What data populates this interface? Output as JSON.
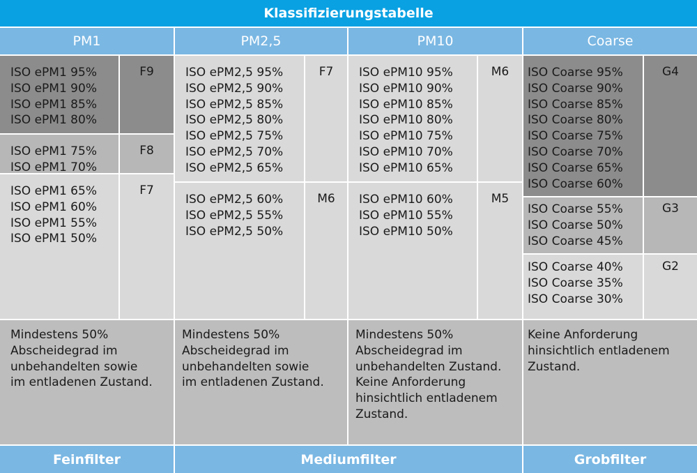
{
  "title": "Klassifizierungstabelle",
  "columns": [
    {
      "label": "PM1"
    },
    {
      "label": "PM2,5"
    },
    {
      "label": "PM10"
    },
    {
      "label": "Coarse"
    }
  ],
  "pm1": [
    {
      "values": "ISO ePM1 95%\nISO ePM1 90%\nISO ePM1 85%\nISO ePM1 80%",
      "grade": "F9"
    },
    {
      "values": "ISO ePM1 75%\nISO ePM1 70%",
      "grade": "F8"
    },
    {
      "values": "ISO ePM1 65%\nISO ePM1 60%\nISO ePM1 55%\nISO ePM1 50%",
      "grade": "F7"
    }
  ],
  "pm25": [
    {
      "values": "ISO ePM2,5 95%\nISO ePM2,5 90%\nISO ePM2,5 85%\nISO ePM2,5 80%\nISO ePM2,5 75%\nISO ePM2,5 70%\nISO ePM2,5 65%",
      "grade": "F7"
    },
    {
      "values": "ISO ePM2,5 60%\nISO ePM2,5 55%\nISO ePM2,5 50%",
      "grade": "M6"
    }
  ],
  "pm10": [
    {
      "values": "ISO ePM10 95%\nISO ePM10 90%\nISO ePM10 85%\nISO ePM10 80%\nISO ePM10 75%\nISO ePM10 70%\nISO ePM10 65%",
      "grade": "M6"
    },
    {
      "values": "ISO ePM10 60%\nISO ePM10 55%\nISO ePM10 50%",
      "grade": "M5"
    }
  ],
  "coarse": [
    {
      "values": "ISO Coarse 95%\nISO Coarse 90%\nISO Coarse 85%\nISO Coarse 80%\nISO Coarse 75%\nISO Coarse 70%\nISO Coarse 65%\nISO Coarse 60%",
      "grade": "G4"
    },
    {
      "values": "ISO Coarse 55%\nISO Coarse 50%\nISO Coarse 45%",
      "grade": "G3"
    },
    {
      "values": "ISO Coarse 40%\nISO Coarse 35%\nISO Coarse 30%",
      "grade": "G2"
    }
  ],
  "descriptions": [
    "Mindestens 50%\nAbscheidegrad im\nunbehandelten sowie\nim entladenen Zustand.",
    "Mindestens 50%\nAbscheidegrad im\nunbehandelten sowie\nim entladenen Zustand.",
    "Mindestens 50%\nAbscheidegrad im\nunbehandelten Zustand.\nKeine Anforderung\nhinsichtlich entladenem\nZustand.",
    "Keine Anforderung\nhinsichtlich entladenem\nZustand."
  ],
  "footer": {
    "fein": "Feinfilter",
    "medium": "Mediumfilter",
    "grob": "Grobfilter"
  }
}
